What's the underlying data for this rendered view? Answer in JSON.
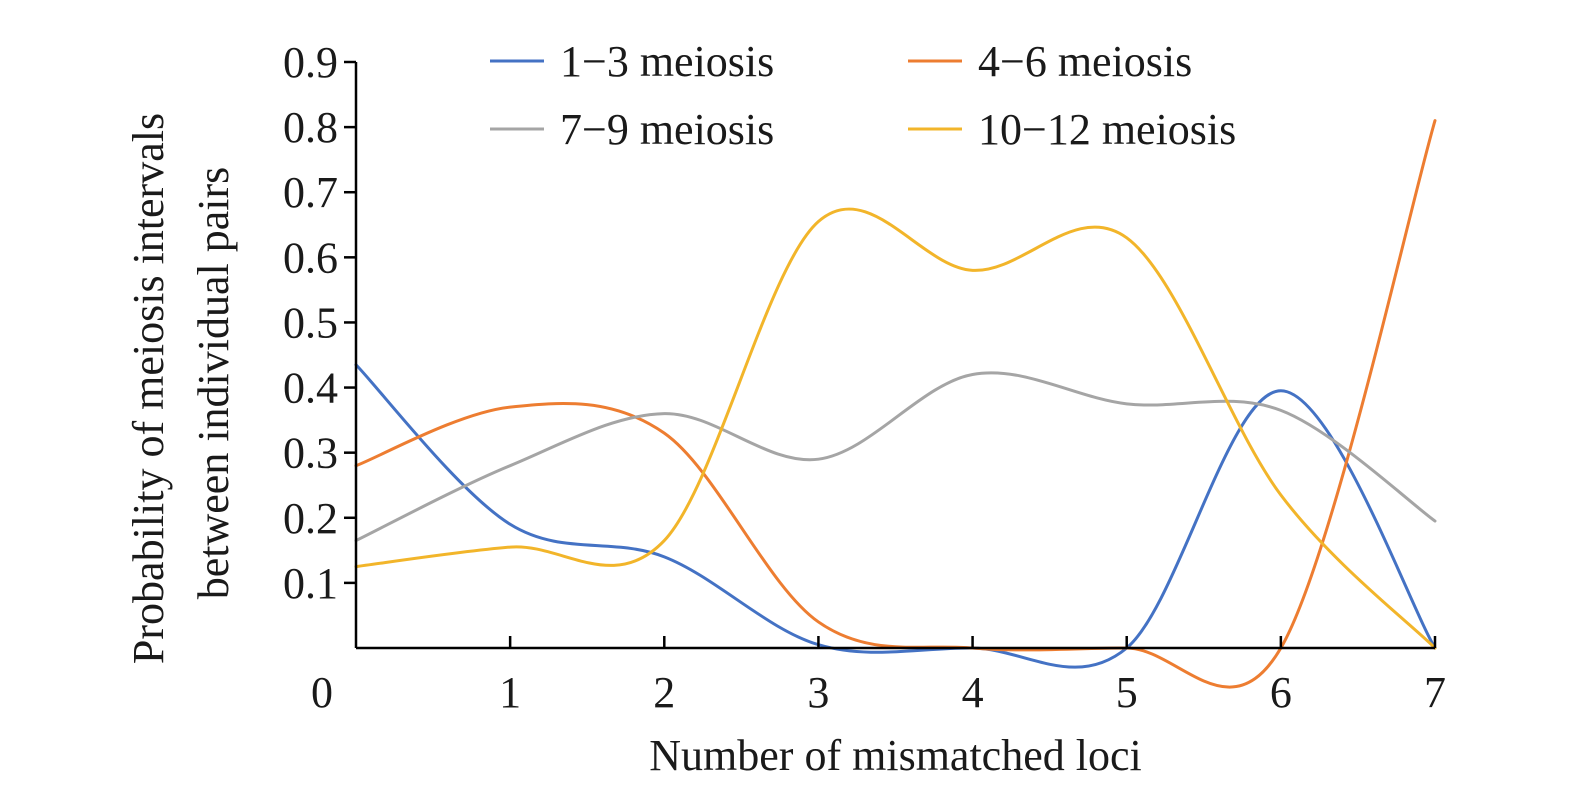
{
  "chart_data": {
    "type": "line",
    "title": "",
    "xlabel": "Number of mismatched loci",
    "ylabel_lines": [
      "Probability of meiosis intervals",
      "between individual pairs"
    ],
    "x": [
      0,
      1,
      2,
      3,
      4,
      5,
      6,
      7
    ],
    "xlim": [
      0,
      7
    ],
    "ylim": [
      0,
      0.9
    ],
    "x_tick_labels": [
      "0",
      "1",
      "2",
      "3",
      "4",
      "5",
      "6",
      "7"
    ],
    "y_tick_labels": [
      "0.1",
      "0.2",
      "0.3",
      "0.4",
      "0.5",
      "0.6",
      "0.7",
      "0.8",
      "0.9"
    ],
    "y_tick_values": [
      0.1,
      0.2,
      0.3,
      0.4,
      0.5,
      0.6,
      0.7,
      0.8,
      0.9
    ],
    "grid": false,
    "smooth": true,
    "legend_position": "top",
    "series": [
      {
        "name": "1−3 meiosis",
        "color": "#4472C4",
        "values": [
          0.435,
          0.19,
          0.14,
          0.005,
          0.0,
          0.0,
          0.395,
          0.0
        ]
      },
      {
        "name": "4−6 meiosis",
        "color": "#ED7D31",
        "values": [
          0.28,
          0.37,
          0.33,
          0.04,
          0.0,
          0.0,
          0.0,
          0.81
        ]
      },
      {
        "name": "7−9 meiosis",
        "color": "#A5A5A5",
        "values": [
          0.165,
          0.28,
          0.36,
          0.29,
          0.42,
          0.375,
          0.365,
          0.195
        ]
      },
      {
        "name": "10−12 meiosis",
        "color": "#F2B52A",
        "values": [
          0.125,
          0.155,
          0.165,
          0.655,
          0.58,
          0.63,
          0.235,
          0.0
        ]
      }
    ]
  }
}
